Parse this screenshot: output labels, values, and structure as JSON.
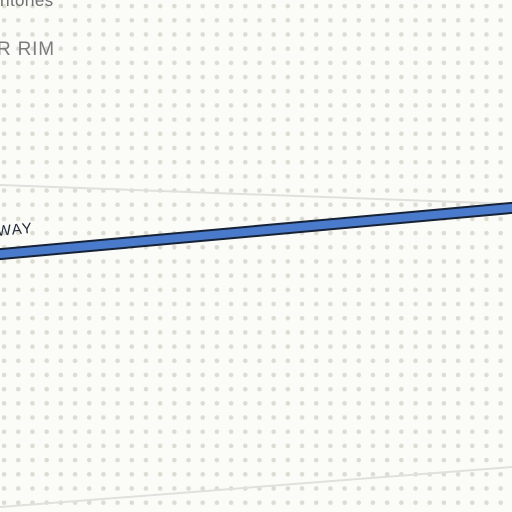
{
  "map": {
    "background_color": "#fbfbf8",
    "dot_color": "#dcdcd2",
    "labels": {
      "territory": "rritories",
      "area": "R RIM",
      "highway": "WAY"
    },
    "roads": {
      "highway_fill": "#4a7acb",
      "highway_casing": "#162236",
      "minor_road_color": "#e0e0dc"
    }
  }
}
